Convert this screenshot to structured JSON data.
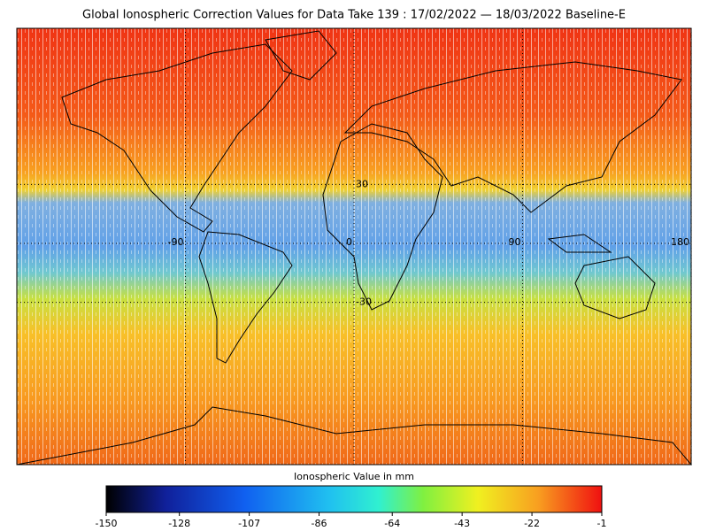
{
  "title": "Global Ionospheric Correction Values for Data Take 139 : 17/02/2022 — 18/03/2022 Baseline-E",
  "map": {
    "lon_labels": [
      -90,
      0,
      90,
      180
    ],
    "lat_labels": [
      30,
      -30
    ]
  },
  "colorbar": {
    "label": "Ionospheric Value in mm",
    "lim": [
      -150,
      -1
    ],
    "ticks": [
      -150,
      -128,
      -107,
      -86,
      -64,
      -43,
      -22,
      -1
    ]
  }
}
